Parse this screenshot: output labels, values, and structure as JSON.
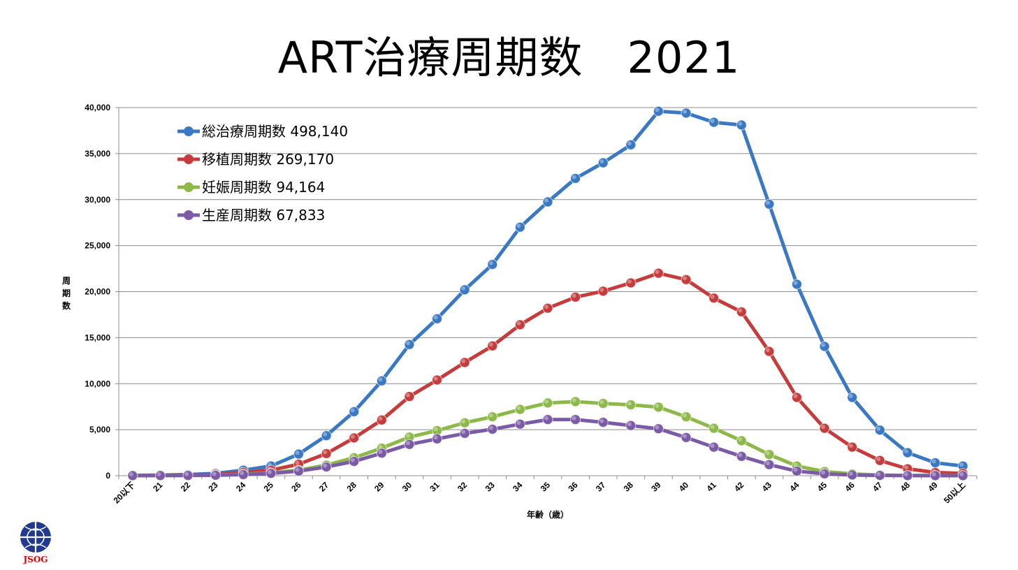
{
  "title": "ART治療周期数　2021",
  "logo": {
    "icon": "jsog-logo-icon",
    "text": "JSOG",
    "color": "#1f3a8f",
    "text_color": "#e00000"
  },
  "chart_data": {
    "type": "line",
    "title": "ART治療周期数　2021",
    "xlabel": "年齢（歳）",
    "ylabel": "周期数",
    "ylim": [
      0,
      40000
    ],
    "yticks": [
      0,
      5000,
      10000,
      15000,
      20000,
      25000,
      30000,
      35000,
      40000
    ],
    "ytick_labels": [
      "0",
      "5,000",
      "10,000",
      "15,000",
      "20,000",
      "25,000",
      "30,000",
      "35,000",
      "40,000"
    ],
    "grid": true,
    "legend_position": "top-left",
    "categories": [
      "20以下",
      "21",
      "22",
      "23",
      "24",
      "25",
      "26",
      "27",
      "28",
      "29",
      "30",
      "31",
      "32",
      "33",
      "34",
      "35",
      "36",
      "37",
      "38",
      "39",
      "40",
      "41",
      "42",
      "43",
      "44",
      "45",
      "46",
      "47",
      "48",
      "49",
      "50以上"
    ],
    "series": [
      {
        "name": "総治療周期数",
        "total": "498,140",
        "color": "#3a78c3",
        "values": [
          40,
          70,
          120,
          250,
          600,
          1050,
          2350,
          4350,
          6950,
          10300,
          14250,
          17050,
          20200,
          22950,
          27000,
          29750,
          32300,
          34000,
          35950,
          39600,
          39400,
          38400,
          38100,
          29500,
          20800,
          14050,
          8500,
          4950,
          2500,
          1400,
          1050
        ]
      },
      {
        "name": "移植周期数",
        "total": "269,170",
        "color": "#c43c3c",
        "values": [
          20,
          40,
          70,
          150,
          350,
          600,
          1250,
          2400,
          4100,
          6050,
          8600,
          10400,
          12300,
          14100,
          16400,
          18200,
          19400,
          20050,
          20950,
          22000,
          21300,
          19300,
          17800,
          13500,
          8500,
          5150,
          3100,
          1650,
          750,
          350,
          250
        ]
      },
      {
        "name": "妊娠周期数",
        "total": "94,164",
        "color": "#8db84a",
        "values": [
          10,
          20,
          30,
          60,
          150,
          300,
          600,
          1150,
          1950,
          3000,
          4200,
          4900,
          5750,
          6400,
          7200,
          7900,
          8050,
          7850,
          7700,
          7450,
          6400,
          5150,
          3800,
          2300,
          1050,
          450,
          200,
          70,
          30,
          15,
          10
        ]
      },
      {
        "name": "生産周期数",
        "total": "67,833",
        "color": "#7b5aa6",
        "values": [
          5,
          15,
          25,
          50,
          120,
          250,
          500,
          950,
          1550,
          2450,
          3400,
          4000,
          4600,
          5050,
          5600,
          6100,
          6100,
          5800,
          5450,
          5100,
          4150,
          3100,
          2100,
          1200,
          500,
          200,
          80,
          30,
          10,
          5,
          5
        ]
      }
    ]
  }
}
